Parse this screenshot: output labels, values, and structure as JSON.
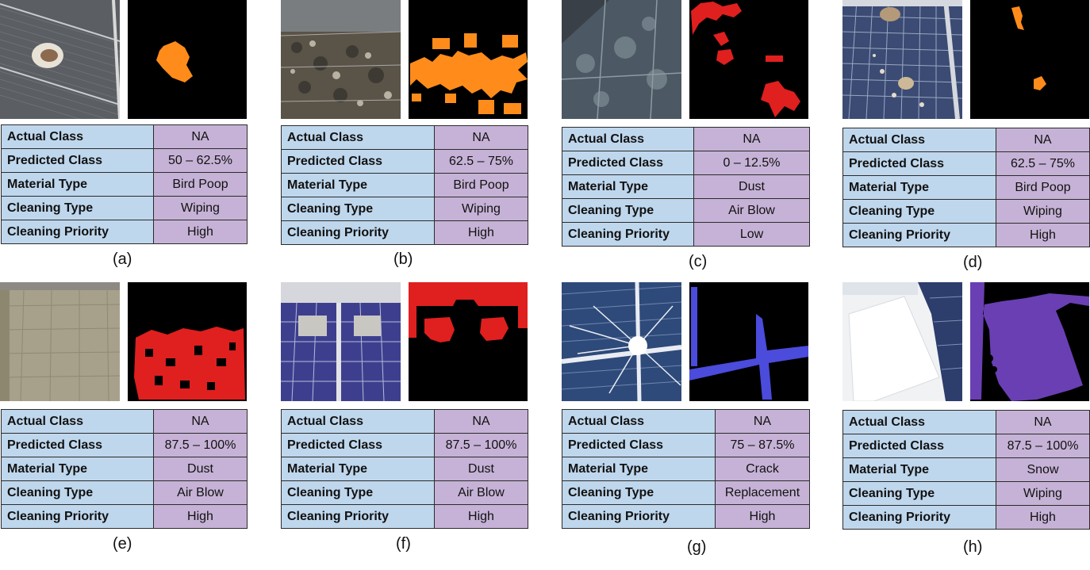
{
  "row_labels": [
    "Actual Class",
    "Predicted Class",
    "Material Type",
    "Cleaning Type",
    "Cleaning Priority"
  ],
  "mask_colors": {
    "orange": "#ff8c1a",
    "red": "#e01f1f",
    "blue": "#4b4bdc",
    "purple": "#6a3fb3"
  },
  "panels": [
    {
      "caption": "(a)",
      "values": [
        "NA",
        "50 – 62.5%",
        "Bird Poop",
        "Wiping",
        "High"
      ],
      "mask_color": "orange",
      "photo_subject": "panel with a single bird dropping"
    },
    {
      "caption": "(b)",
      "values": [
        "NA",
        "62.5 – 75%",
        "Bird Poop",
        "Wiping",
        "High"
      ],
      "mask_color": "orange",
      "photo_subject": "heavily soiled panel"
    },
    {
      "caption": "(c)",
      "values": [
        "NA",
        "0 – 12.5%",
        "Dust",
        "Air Blow",
        "Low"
      ],
      "mask_color": "red",
      "photo_subject": "lightly dusty panel"
    },
    {
      "caption": "(d)",
      "values": [
        "NA",
        "62.5 – 75%",
        "Bird Poop",
        "Wiping",
        "High"
      ],
      "mask_color": "orange",
      "photo_subject": "panel with bird droppings"
    },
    {
      "caption": "(e)",
      "values": [
        "NA",
        "87.5 – 100%",
        "Dust",
        "Air Blow",
        "High"
      ],
      "mask_color": "red",
      "photo_subject": "dust-covered panel"
    },
    {
      "caption": "(f)",
      "values": [
        "NA",
        "87.5 – 100%",
        "Dust",
        "Air Blow",
        "High"
      ],
      "mask_color": "red",
      "photo_subject": "panels with dusty patches"
    },
    {
      "caption": "(g)",
      "values": [
        "NA",
        "75 – 87.5%",
        "Crack",
        "Replacement",
        "High"
      ],
      "mask_color": "blue",
      "photo_subject": "cracked panel"
    },
    {
      "caption": "(h)",
      "values": [
        "NA",
        "87.5 – 100%",
        "Snow",
        "Wiping",
        "High"
      ],
      "mask_color": "purple",
      "photo_subject": "snow-covered panel"
    }
  ]
}
